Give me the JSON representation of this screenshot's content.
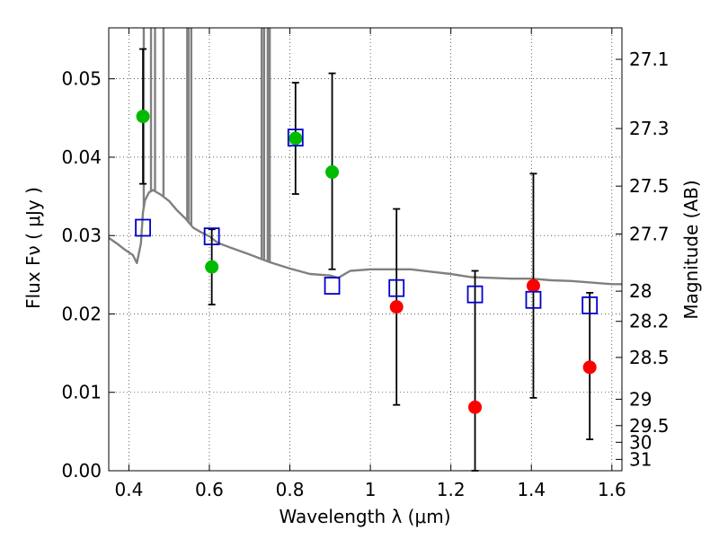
{
  "chart_data": {
    "type": "scatter",
    "title": "",
    "xlabel": "Wavelength  λ (μm)",
    "ylabel_left": "Flux  Fν  ( μJy )",
    "ylabel_right": "Magnitude (AB)",
    "xlim": [
      0.35,
      1.625
    ],
    "ylim": [
      0.0,
      0.0565
    ],
    "grid": true,
    "x_ticks": [
      0.4,
      0.6,
      0.8,
      1.0,
      1.2,
      1.4,
      1.6
    ],
    "x_tick_labels": [
      "0.4",
      "0.6",
      "0.8",
      "1",
      "1.2",
      "1.4",
      "1.6"
    ],
    "y_ticks": [
      0.0,
      0.01,
      0.02,
      0.03,
      0.04,
      0.05
    ],
    "y_tick_labels": [
      "0.00",
      "0.01",
      "0.02",
      "0.03",
      "0.04",
      "0.05"
    ],
    "right_ticks": [
      27.1,
      27.3,
      27.5,
      27.7,
      28.0,
      28.2,
      28.5,
      29.0,
      29.5,
      30.0,
      31.0
    ],
    "right_tick_labels": [
      "27.1",
      "27.3",
      "27.5",
      "27.7",
      "28",
      "28.2",
      "28.5",
      "29",
      "29.5",
      "30",
      "31"
    ],
    "colors": {
      "green": "#00bb00",
      "red": "#ff0000",
      "model_box": "#0000cc",
      "sed": "#808080"
    },
    "series": [
      {
        "kind": "observed-detection",
        "color": "green",
        "points": [
          {
            "x": 0.435,
            "y": 0.0452,
            "ylo": 0.0366,
            "yhi": 0.0538
          },
          {
            "x": 0.606,
            "y": 0.026,
            "ylo": 0.0212,
            "yhi": 0.0308
          },
          {
            "x": 0.814,
            "y": 0.0424,
            "ylo": 0.0353,
            "yhi": 0.0495
          },
          {
            "x": 0.905,
            "y": 0.0381,
            "ylo": 0.0257,
            "yhi": 0.0507
          }
        ]
      },
      {
        "kind": "observed-low-significance",
        "color": "red",
        "points": [
          {
            "x": 1.065,
            "y": 0.0209,
            "ylo": 0.0084,
            "yhi": 0.0334
          },
          {
            "x": 1.26,
            "y": 0.0081,
            "ylo": 0.0,
            "yhi": 0.0255
          },
          {
            "x": 1.405,
            "y": 0.0236,
            "ylo": 0.0093,
            "yhi": 0.0379
          },
          {
            "x": 1.545,
            "y": 0.0132,
            "ylo": 0.004,
            "yhi": 0.0227
          }
        ]
      },
      {
        "kind": "model-photometry",
        "color": "model_box",
        "points": [
          {
            "x": 0.435,
            "y": 0.031
          },
          {
            "x": 0.606,
            "y": 0.0299
          },
          {
            "x": 0.814,
            "y": 0.0425
          },
          {
            "x": 0.905,
            "y": 0.0236
          },
          {
            "x": 1.065,
            "y": 0.0233
          },
          {
            "x": 1.26,
            "y": 0.0225
          },
          {
            "x": 1.405,
            "y": 0.0218
          },
          {
            "x": 1.545,
            "y": 0.0211
          }
        ]
      }
    ],
    "sed_curve": [
      [
        0.35,
        0.0297
      ],
      [
        0.37,
        0.029
      ],
      [
        0.39,
        0.0282
      ],
      [
        0.41,
        0.0275
      ],
      [
        0.42,
        0.0265
      ],
      [
        0.43,
        0.029
      ],
      [
        0.435,
        0.033
      ],
      [
        0.44,
        0.0345
      ],
      [
        0.45,
        0.0355
      ],
      [
        0.46,
        0.0358
      ],
      [
        0.48,
        0.0352
      ],
      [
        0.5,
        0.0344
      ],
      [
        0.52,
        0.0332
      ],
      [
        0.54,
        0.0322
      ],
      [
        0.56,
        0.031
      ],
      [
        0.58,
        0.0304
      ],
      [
        0.6,
        0.0299
      ],
      [
        0.62,
        0.0291
      ],
      [
        0.65,
        0.0285
      ],
      [
        0.7,
        0.0276
      ],
      [
        0.75,
        0.0266
      ],
      [
        0.8,
        0.0258
      ],
      [
        0.85,
        0.0251
      ],
      [
        0.9,
        0.0249
      ],
      [
        0.92,
        0.0246
      ],
      [
        0.95,
        0.0255
      ],
      [
        1.0,
        0.0257
      ],
      [
        1.05,
        0.0257
      ],
      [
        1.1,
        0.0257
      ],
      [
        1.15,
        0.0254
      ],
      [
        1.2,
        0.0251
      ],
      [
        1.25,
        0.0247
      ],
      [
        1.3,
        0.0246
      ],
      [
        1.35,
        0.0245
      ],
      [
        1.4,
        0.0245
      ],
      [
        1.45,
        0.0243
      ],
      [
        1.5,
        0.0242
      ],
      [
        1.55,
        0.024
      ],
      [
        1.6,
        0.0238
      ],
      [
        1.625,
        0.0238
      ]
    ],
    "sed_emission_lines": [
      {
        "x": 0.437,
        "peak": 0.0565
      },
      {
        "x": 0.455,
        "peak": 0.0565
      },
      {
        "x": 0.465,
        "peak": 0.0565
      },
      {
        "x": 0.486,
        "peak": 0.0565
      },
      {
        "x": 0.545,
        "peak": 0.0565
      },
      {
        "x": 0.548,
        "peak": 0.0565
      },
      {
        "x": 0.555,
        "peak": 0.0565
      },
      {
        "x": 0.73,
        "peak": 0.0565
      },
      {
        "x": 0.736,
        "peak": 0.0565
      },
      {
        "x": 0.745,
        "peak": 0.0565
      },
      {
        "x": 0.75,
        "peak": 0.0565
      }
    ]
  }
}
